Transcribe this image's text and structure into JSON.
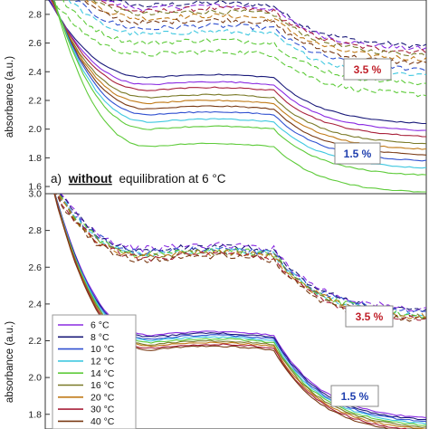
{
  "chart_data": [
    {
      "type": "line",
      "panel_title_prefix": "a)",
      "panel_title_emph": "without",
      "panel_title_rest": "equilibration at 6 °C",
      "ylabel": "absorbance (a.u.)",
      "ylim": [
        1.55,
        2.9
      ],
      "yticks": [
        "1.6",
        "1.8",
        "2.0",
        "2.2",
        "2.4",
        "2.6",
        "2.8"
      ],
      "annotations": [
        {
          "text": "3.5 %",
          "color": "#c0202a"
        },
        {
          "text": "1.5 %",
          "color": "#1f3fae"
        }
      ],
      "series_groups": [
        {
          "group": "3.5 %",
          "style": "dashed",
          "plateau_values": [
            2.86,
            2.84,
            2.82,
            2.8,
            2.77,
            2.74,
            2.7,
            2.66,
            2.6,
            2.52
          ]
        },
        {
          "group": "1.5 %",
          "style": "solid",
          "plateau_values": [
            2.36,
            2.31,
            2.27,
            2.22,
            2.18,
            2.14,
            2.1,
            2.05,
            2.0,
            1.88
          ]
        }
      ]
    },
    {
      "type": "line",
      "ylabel": "absorbance (a.u.)",
      "ylim": [
        1.72,
        3.0
      ],
      "yticks": [
        "1.8",
        "2.0",
        "2.2",
        "2.4",
        "2.6",
        "2.8",
        "3.0"
      ],
      "annotations": [
        {
          "text": "3.5 %",
          "color": "#c0202a"
        },
        {
          "text": "1.5 %",
          "color": "#1f3fae"
        }
      ],
      "legend": [
        {
          "label": "6 °C",
          "color": "#8a2be2"
        },
        {
          "label": "8 °C",
          "color": "#1a1a7a"
        },
        {
          "label": "10 °C",
          "color": "#3050d0"
        },
        {
          "label": "12 °C",
          "color": "#40c8e0"
        },
        {
          "label": "14 °C",
          "color": "#5ecb3a"
        },
        {
          "label": "16 °C",
          "color": "#7a7a28"
        },
        {
          "label": "20 °C",
          "color": "#c07a18"
        },
        {
          "label": "30 °C",
          "color": "#a8203a"
        },
        {
          "label": "40 °C",
          "color": "#7a3a14"
        }
      ],
      "series_groups": [
        {
          "group": "3.5 %",
          "style": "dashed",
          "plateau_values": [
            2.7,
            2.69,
            2.68,
            2.67,
            2.67,
            2.66,
            2.66,
            2.65,
            2.64
          ]
        },
        {
          "group": "1.5 %",
          "style": "solid",
          "plateau_values": [
            2.23,
            2.22,
            2.21,
            2.2,
            2.19,
            2.18,
            2.17,
            2.16,
            2.15
          ]
        }
      ]
    }
  ]
}
